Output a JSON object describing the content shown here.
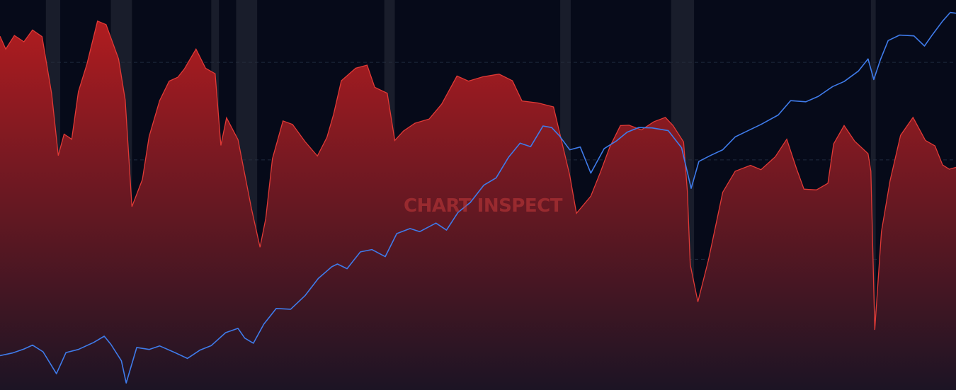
{
  "watermark": {
    "text": "CHART INSPECT",
    "color": "#c33a3a"
  },
  "colors": {
    "background": "#060a19",
    "gridline": "#1f2a3e",
    "recession_band": "#2a2d3b",
    "area_fill_top": "#b01c20",
    "area_fill_bottom": "#1c1424",
    "area_stroke": "#e03a36",
    "line": "#3f7bea"
  },
  "chart_data": {
    "type": "area",
    "grid": true,
    "legend": "none",
    "xlim": [
      0,
      100
    ],
    "ylim_area": [
      0,
      100
    ],
    "ylim_line": [
      0,
      100
    ],
    "gridlines_y": [
      20,
      33.5,
      59,
      84
    ],
    "recession_bands": [
      [
        4.8,
        6.3
      ],
      [
        11.6,
        13.8
      ],
      [
        22.1,
        22.9
      ],
      [
        24.7,
        26.9
      ],
      [
        40.2,
        41.3
      ],
      [
        58.6,
        59.7
      ],
      [
        70.2,
        72.6
      ],
      [
        91.1,
        91.6
      ]
    ],
    "series": [
      {
        "kind": "area",
        "points": [
          [
            0,
            90.7
          ],
          [
            0.6,
            87.4
          ],
          [
            1.5,
            90.9
          ],
          [
            2.5,
            89.3
          ],
          [
            3.4,
            92.3
          ],
          [
            4.4,
            90.6
          ],
          [
            5.4,
            76
          ],
          [
            6.1,
            60.1
          ],
          [
            6.7,
            65.6
          ],
          [
            7.5,
            64.3
          ],
          [
            8.2,
            76.5
          ],
          [
            9.1,
            83.6
          ],
          [
            10.2,
            94.6
          ],
          [
            11.1,
            93.7
          ],
          [
            12.4,
            84.9
          ],
          [
            13.1,
            74.4
          ],
          [
            13.8,
            47
          ],
          [
            14.9,
            54
          ],
          [
            15.6,
            65
          ],
          [
            16.7,
            74.2
          ],
          [
            17.7,
            79.2
          ],
          [
            18.6,
            80.2
          ],
          [
            19.3,
            82.4
          ],
          [
            20.5,
            87.4
          ],
          [
            21.5,
            82.5
          ],
          [
            22.5,
            81.1
          ],
          [
            23.1,
            62.7
          ],
          [
            23.7,
            69.8
          ],
          [
            24.9,
            64.2
          ],
          [
            26.3,
            46.5
          ],
          [
            27.2,
            36.6
          ],
          [
            27.8,
            44
          ],
          [
            28.5,
            59.3
          ],
          [
            29.6,
            69
          ],
          [
            30.6,
            68.1
          ],
          [
            31.9,
            63.7
          ],
          [
            33.2,
            60
          ],
          [
            34.2,
            64.8
          ],
          [
            34.9,
            70.7
          ],
          [
            35.7,
            79.3
          ],
          [
            37.2,
            82.5
          ],
          [
            38.4,
            83.3
          ],
          [
            39.2,
            77.6
          ],
          [
            40.5,
            76.1
          ],
          [
            41.3,
            64
          ],
          [
            42.2,
            66.4
          ],
          [
            43.4,
            68.4
          ],
          [
            44.9,
            69.5
          ],
          [
            46.2,
            73.3
          ],
          [
            47.8,
            80.5
          ],
          [
            49,
            79.2
          ],
          [
            50.5,
            80.3
          ],
          [
            52.2,
            81
          ],
          [
            53.6,
            79.3
          ],
          [
            54.6,
            74.1
          ],
          [
            56.3,
            73.6
          ],
          [
            57.9,
            72.6
          ],
          [
            59.6,
            55
          ],
          [
            60.3,
            45.3
          ],
          [
            61.8,
            49.7
          ],
          [
            62.8,
            55.8
          ],
          [
            63.8,
            62.4
          ],
          [
            64.9,
            67.8
          ],
          [
            65.8,
            67.9
          ],
          [
            67.1,
            66.7
          ],
          [
            68.4,
            68.8
          ],
          [
            69.6,
            69.9
          ],
          [
            70.4,
            67.8
          ],
          [
            71.5,
            63.6
          ],
          [
            71.9,
            50.8
          ],
          [
            72.2,
            32.2
          ],
          [
            73,
            22.6
          ],
          [
            74.1,
            33.3
          ],
          [
            75.6,
            50.7
          ],
          [
            76.9,
            56.1
          ],
          [
            78.5,
            57.6
          ],
          [
            79.6,
            56.5
          ],
          [
            81.1,
            59.8
          ],
          [
            82.3,
            64.3
          ],
          [
            83.3,
            56.9
          ],
          [
            84.1,
            51.5
          ],
          [
            85.4,
            51.3
          ],
          [
            86.6,
            53
          ],
          [
            87.2,
            63.1
          ],
          [
            88.3,
            67.8
          ],
          [
            89.4,
            63.8
          ],
          [
            90.8,
            60.6
          ],
          [
            91.1,
            56.1
          ],
          [
            91.5,
            15.4
          ],
          [
            92.2,
            40.6
          ],
          [
            93.1,
            53.6
          ],
          [
            94.2,
            65.3
          ],
          [
            95.5,
            69.9
          ],
          [
            96.8,
            64
          ],
          [
            97.8,
            62.6
          ],
          [
            98.6,
            57.7
          ],
          [
            99.3,
            56.6
          ],
          [
            100,
            57.1
          ]
        ]
      },
      {
        "kind": "line",
        "points": [
          [
            0,
            8.8
          ],
          [
            1.3,
            9.5
          ],
          [
            2.5,
            10.5
          ],
          [
            3.4,
            11.5
          ],
          [
            4.5,
            9.8
          ],
          [
            5.9,
            4.2
          ],
          [
            6.9,
            9.6
          ],
          [
            8.2,
            10.4
          ],
          [
            9.8,
            12.2
          ],
          [
            10.9,
            13.8
          ],
          [
            11.6,
            11.7
          ],
          [
            12.7,
            7.5
          ],
          [
            13.2,
            1.8
          ],
          [
            14.3,
            10.9
          ],
          [
            15.6,
            10.4
          ],
          [
            16.7,
            11.3
          ],
          [
            18.3,
            9.6
          ],
          [
            19.6,
            8.1
          ],
          [
            20.9,
            10.2
          ],
          [
            22.1,
            11.4
          ],
          [
            23.6,
            14.7
          ],
          [
            24.9,
            15.8
          ],
          [
            25.6,
            13.3
          ],
          [
            26.5,
            12
          ],
          [
            27.6,
            16.9
          ],
          [
            28.9,
            20.9
          ],
          [
            30.4,
            20.7
          ],
          [
            31.9,
            24.2
          ],
          [
            33.3,
            28.6
          ],
          [
            34.7,
            31.6
          ],
          [
            35.3,
            32.3
          ],
          [
            36.3,
            31.1
          ],
          [
            37.7,
            35.4
          ],
          [
            38.9,
            36
          ],
          [
            40.3,
            34.2
          ],
          [
            41.5,
            40.1
          ],
          [
            42.9,
            41.4
          ],
          [
            43.9,
            40.6
          ],
          [
            45.6,
            42.8
          ],
          [
            46.7,
            41
          ],
          [
            47.9,
            45.5
          ],
          [
            49.2,
            48.1
          ],
          [
            50.6,
            52.5
          ],
          [
            51.9,
            54.4
          ],
          [
            53.2,
            59.7
          ],
          [
            54.4,
            63.3
          ],
          [
            55.5,
            62.4
          ],
          [
            56.8,
            67.7
          ],
          [
            57.7,
            67.3
          ],
          [
            58.5,
            65.2
          ],
          [
            59.6,
            61.6
          ],
          [
            60.7,
            62.3
          ],
          [
            61.8,
            55.6
          ],
          [
            63.2,
            61.9
          ],
          [
            64.5,
            63.9
          ],
          [
            65.6,
            66.1
          ],
          [
            66.8,
            67.3
          ],
          [
            68.2,
            67.2
          ],
          [
            69.9,
            66.5
          ],
          [
            71.3,
            62.1
          ],
          [
            72.3,
            51.7
          ],
          [
            73.1,
            58.6
          ],
          [
            74.3,
            60.1
          ],
          [
            75.6,
            61.6
          ],
          [
            76.9,
            64.9
          ],
          [
            77.9,
            66.1
          ],
          [
            79.6,
            68.1
          ],
          [
            81.4,
            70.5
          ],
          [
            82.7,
            74.2
          ],
          [
            84.3,
            73.9
          ],
          [
            85.6,
            75.3
          ],
          [
            87.1,
            77.8
          ],
          [
            88.3,
            79.1
          ],
          [
            89.8,
            81.8
          ],
          [
            90.8,
            84.9
          ],
          [
            91.4,
            79.6
          ],
          [
            92.1,
            84.7
          ],
          [
            92.9,
            89.6
          ],
          [
            94.1,
            91
          ],
          [
            95.6,
            90.8
          ],
          [
            96.7,
            88.2
          ],
          [
            97.5,
            91
          ],
          [
            98.6,
            94.6
          ],
          [
            99.4,
            96.8
          ],
          [
            100,
            96.6
          ]
        ]
      }
    ]
  }
}
